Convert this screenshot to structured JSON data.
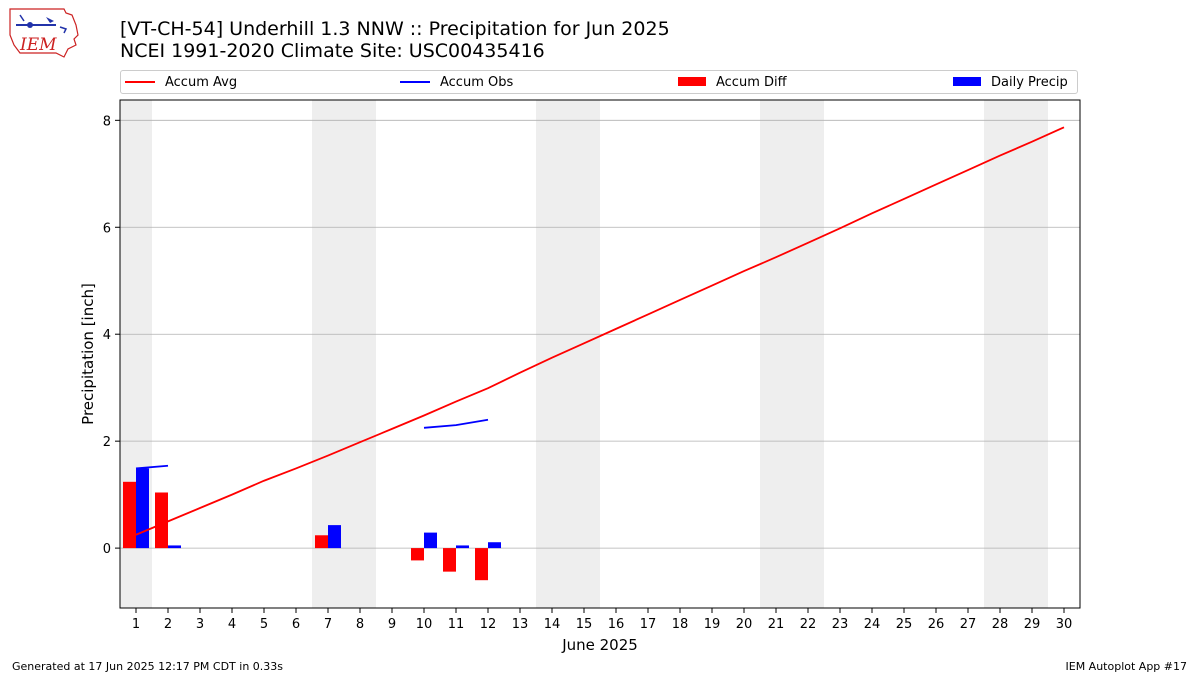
{
  "title_line1": "[VT-CH-54] Underhill 1.3 NNW :: Precipitation for Jun 2025",
  "title_line2": "NCEI 1991-2020 Climate Site: USC00435416",
  "logo_text": "IEM",
  "footer_left": "Generated at 17 Jun 2025 12:17 PM CDT in 0.33s",
  "footer_right": "IEM Autoplot App #17",
  "colors": {
    "accum_avg": "#ff0000",
    "accum_obs": "#0000ff",
    "accum_diff": "#ff0000",
    "daily_precip": "#0000ff",
    "weekend_shade": "#eeeeee",
    "grid": "#b0b0b0"
  },
  "legend": [
    {
      "label": "Accum Avg",
      "kind": "line",
      "color": "#ff0000"
    },
    {
      "label": "Accum Obs",
      "kind": "line",
      "color": "#0000ff"
    },
    {
      "label": "Accum Diff",
      "kind": "box",
      "color": "#ff0000"
    },
    {
      "label": "Daily Precip",
      "kind": "box",
      "color": "#0000ff"
    }
  ],
  "chart_data": {
    "type": "bar",
    "xlabel": "June 2025",
    "ylabel": "Precipitation [inch]",
    "xlim": [
      0.5,
      30.5
    ],
    "ylim": [
      -1.12,
      8.38
    ],
    "yticks": [
      0,
      2,
      4,
      6,
      8
    ],
    "xticks": [
      1,
      2,
      3,
      4,
      5,
      6,
      7,
      8,
      9,
      10,
      11,
      12,
      13,
      14,
      15,
      16,
      17,
      18,
      19,
      20,
      21,
      22,
      23,
      24,
      25,
      26,
      27,
      28,
      29,
      30
    ],
    "grid": "horizontal",
    "legend_position": "top",
    "weekend_shading": [
      [
        0.5,
        1.5
      ],
      [
        6.5,
        8.5
      ],
      [
        13.5,
        15.5
      ],
      [
        20.5,
        22.5
      ],
      [
        27.5,
        29.5
      ]
    ],
    "series": [
      {
        "name": "Accum Avg",
        "kind": "line",
        "x": [
          1,
          2,
          3,
          4,
          5,
          6,
          7,
          8,
          9,
          10,
          11,
          12,
          13,
          14,
          15,
          16,
          17,
          18,
          19,
          20,
          21,
          22,
          23,
          24,
          25,
          26,
          27,
          28,
          29,
          30
        ],
        "values": [
          0.25,
          0.5,
          0.75,
          1.0,
          1.26,
          1.49,
          1.73,
          1.98,
          2.23,
          2.48,
          2.74,
          2.99,
          3.28,
          3.56,
          3.83,
          4.1,
          4.37,
          4.64,
          4.91,
          5.18,
          5.44,
          5.71,
          5.98,
          6.26,
          6.53,
          6.8,
          7.07,
          7.34,
          7.6,
          7.87
        ]
      },
      {
        "name": "Accum Obs",
        "kind": "line",
        "segments": [
          {
            "x": [
              1,
              2
            ],
            "values": [
              1.49,
              1.54
            ]
          },
          {
            "x": [
              10,
              11,
              12
            ],
            "values": [
              2.25,
              2.3,
              2.4
            ]
          }
        ]
      },
      {
        "name": "Accum Diff",
        "kind": "bar",
        "x": [
          1,
          2,
          7,
          10,
          11,
          12
        ],
        "values": [
          1.24,
          1.04,
          0.24,
          -0.23,
          -0.44,
          -0.6
        ]
      },
      {
        "name": "Daily Precip",
        "kind": "bar",
        "x": [
          1,
          2,
          7,
          10,
          11,
          12
        ],
        "values": [
          1.49,
          0.05,
          0.43,
          0.29,
          0.05,
          0.11
        ]
      }
    ]
  }
}
